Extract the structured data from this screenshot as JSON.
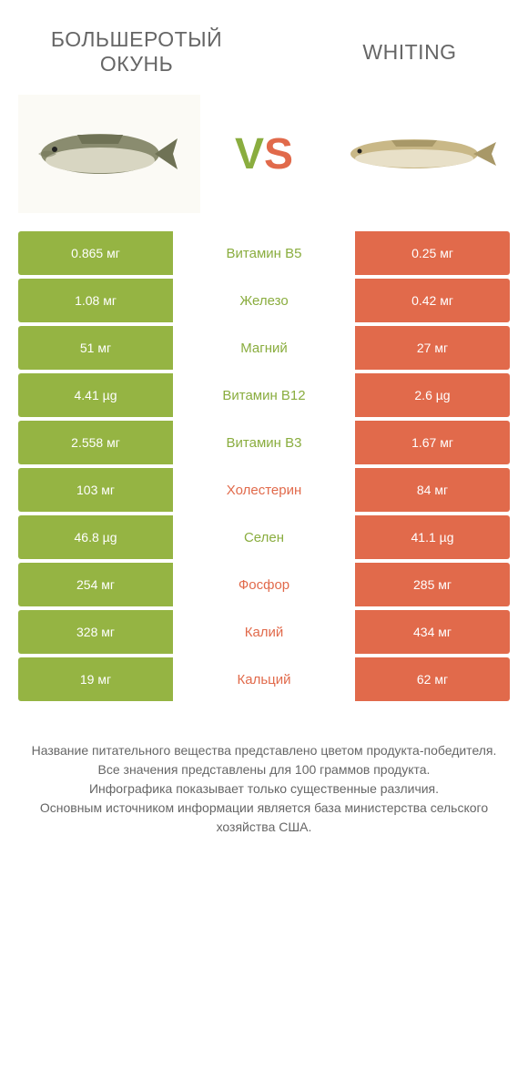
{
  "colors": {
    "green": "#95b443",
    "orange": "#e16a4b",
    "green_text": "#8aad3f",
    "orange_text": "#e16a4b",
    "cell_text": "#ffffff",
    "body_text": "#666666"
  },
  "header": {
    "left_title": "БОЛЬШЕРОТЫЙ\nОКУНЬ",
    "right_title": "WHITING"
  },
  "vs": {
    "v": "V",
    "s": "S"
  },
  "rows": [
    {
      "name": "Витамин B5",
      "left": "0.865 мг",
      "right": "0.25 мг",
      "winner": "left"
    },
    {
      "name": "Железо",
      "left": "1.08 мг",
      "right": "0.42 мг",
      "winner": "left"
    },
    {
      "name": "Магний",
      "left": "51 мг",
      "right": "27 мг",
      "winner": "left"
    },
    {
      "name": "Витамин B12",
      "left": "4.41 µg",
      "right": "2.6 µg",
      "winner": "left"
    },
    {
      "name": "Витамин B3",
      "left": "2.558 мг",
      "right": "1.67 мг",
      "winner": "left"
    },
    {
      "name": "Холестерин",
      "left": "103 мг",
      "right": "84 мг",
      "winner": "right"
    },
    {
      "name": "Селен",
      "left": "46.8 µg",
      "right": "41.1 µg",
      "winner": "left"
    },
    {
      "name": "Фосфор",
      "left": "254 мг",
      "right": "285 мг",
      "winner": "right"
    },
    {
      "name": "Калий",
      "left": "328 мг",
      "right": "434 мг",
      "winner": "right"
    },
    {
      "name": "Кальций",
      "left": "19 мг",
      "right": "62 мг",
      "winner": "right"
    }
  ],
  "footer": {
    "line1": "Название питательного вещества представлено цветом продукта-победителя.",
    "line2": "Все значения представлены для 100 граммов продукта.",
    "line3": "Инфографика показывает только существенные различия.",
    "line4": "Основным источником информации является база министерства сельского хозяйства США."
  },
  "fish": {
    "left": {
      "body_color": "#8a8c6f",
      "belly_color": "#d8d6c2",
      "fin_color": "#6f7255"
    },
    "right": {
      "body_color": "#c9b887",
      "belly_color": "#e8e0c8",
      "fin_color": "#a89868"
    }
  }
}
